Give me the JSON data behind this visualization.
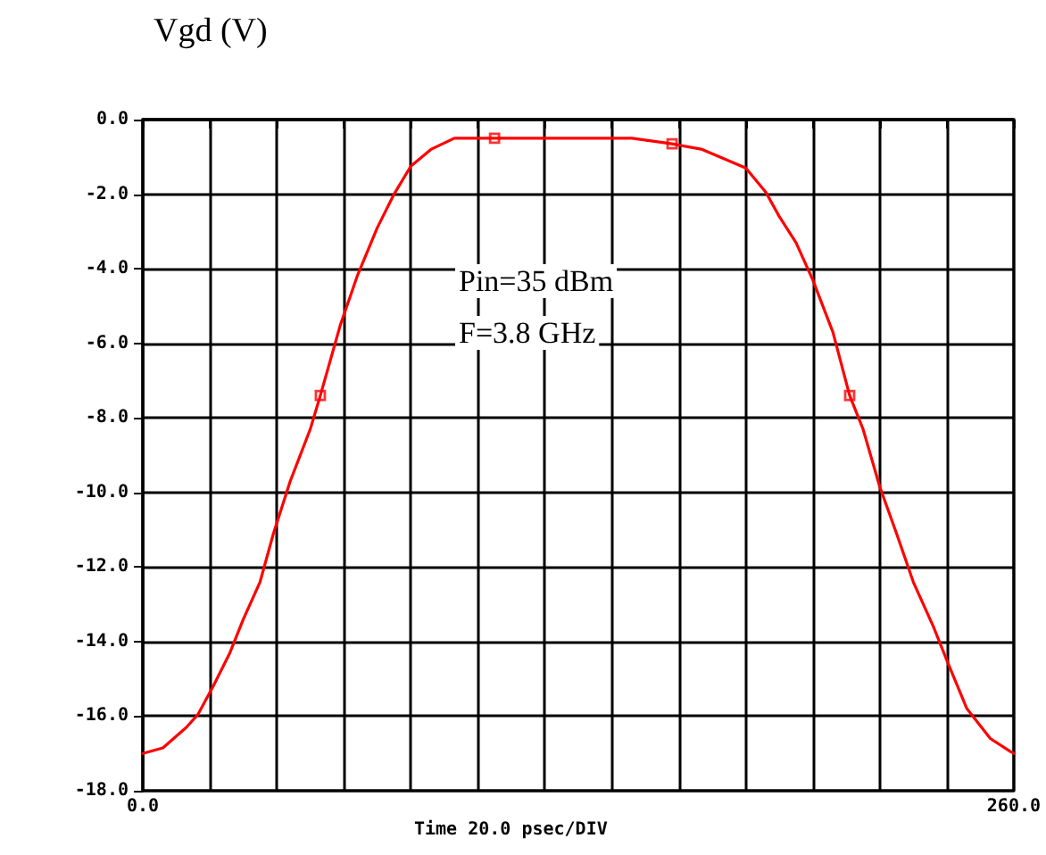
{
  "chart_data": {
    "type": "line",
    "ylabel": "Vgd (V)",
    "xlabel": "Time 20.0 psec/DIV",
    "annotations": [
      "Pin=35 dBm",
      "F=3.8 GHz"
    ],
    "xlim": [
      0,
      260
    ],
    "xticks": [
      {
        "value": 0,
        "label": "0.0"
      },
      {
        "value": 20,
        "label": null
      },
      {
        "value": 40,
        "label": null
      },
      {
        "value": 60,
        "label": null
      },
      {
        "value": 80,
        "label": null
      },
      {
        "value": 100,
        "label": null
      },
      {
        "value": 120,
        "label": null
      },
      {
        "value": 140,
        "label": null
      },
      {
        "value": 160,
        "label": null
      },
      {
        "value": 180,
        "label": null
      },
      {
        "value": 200,
        "label": null
      },
      {
        "value": 220,
        "label": null
      },
      {
        "value": 240,
        "label": null
      },
      {
        "value": 260,
        "label": "260.0"
      }
    ],
    "ylim": [
      -18,
      0
    ],
    "yticks": [
      {
        "value": -18,
        "label": "-18.0"
      },
      {
        "value": -16,
        "label": "-16.0"
      },
      {
        "value": -14,
        "label": "-14.0"
      },
      {
        "value": -12,
        "label": "-12.0"
      },
      {
        "value": -10,
        "label": "-10.0"
      },
      {
        "value": -8,
        "label": "-8.0"
      },
      {
        "value": -6,
        "label": "-6.0"
      },
      {
        "value": -4,
        "label": "-4.0"
      },
      {
        "value": -2,
        "label": "-2.0"
      },
      {
        "value": 0,
        "label": "0.0"
      }
    ],
    "grid": true,
    "series": [
      {
        "color": "#ff0000",
        "marker": "none",
        "line_style": "solid",
        "x": [
          0,
          6,
          13,
          16.5,
          21,
          26,
          30,
          35,
          39,
          44,
          50,
          53,
          59,
          64,
          70,
          75,
          80,
          86,
          93,
          105,
          124,
          146,
          158,
          167,
          180,
          186,
          190,
          195,
          200,
          206,
          211,
          215,
          220,
          225,
          230,
          236,
          240,
          246,
          253,
          259,
          260
        ],
        "values": [
          -17.0,
          -16.85,
          -16.3,
          -15.95,
          -15.2,
          -14.3,
          -13.4,
          -12.4,
          -11.1,
          -9.7,
          -8.3,
          -7.4,
          -5.5,
          -4.2,
          -2.9,
          -2.0,
          -1.25,
          -0.8,
          -0.5,
          -0.5,
          -0.5,
          -0.5,
          -0.65,
          -0.8,
          -1.3,
          -1.95,
          -2.6,
          -3.3,
          -4.3,
          -5.7,
          -7.4,
          -8.3,
          -9.85,
          -11.1,
          -12.4,
          -13.6,
          -14.5,
          -15.8,
          -16.6,
          -16.95,
          -17.0
        ]
      },
      {
        "type": "scatter",
        "color": "#ff0000",
        "marker": "square",
        "x": [
          53,
          105,
          158,
          211
        ],
        "values": [
          -7.4,
          -0.5,
          -0.65,
          -7.4
        ]
      }
    ]
  }
}
